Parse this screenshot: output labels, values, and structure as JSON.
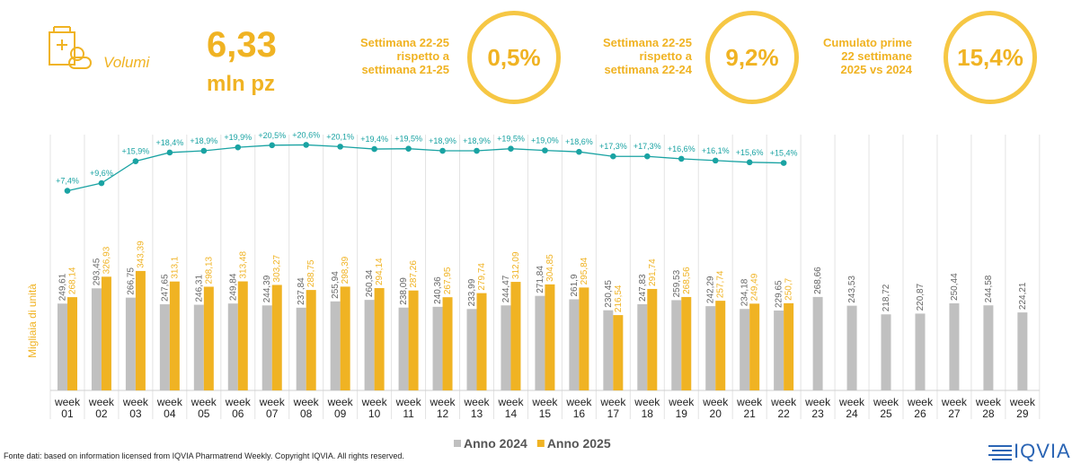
{
  "header": {
    "label": "Volumi",
    "value": "6,33",
    "unit": "mln pz",
    "kpis": [
      {
        "lines": [
          "Settimana 22-25",
          "rispetto a",
          "settimana 21-25"
        ],
        "value": "0,5%"
      },
      {
        "lines": [
          "Settimana 22-25",
          "rispetto a",
          "settimana 22-24"
        ],
        "value": "9,2%"
      },
      {
        "lines": [
          "Cumulato prime",
          "22 settimane",
          "2025 vs 2024"
        ],
        "value": "15,4%"
      }
    ]
  },
  "chart_data": {
    "type": "bar",
    "y_label": "Migliaia di unità",
    "categories": [
      "week 01",
      "week 02",
      "week 03",
      "week 04",
      "week 05",
      "week 06",
      "week 07",
      "week 08",
      "week 09",
      "week 10",
      "week 11",
      "week 12",
      "week 13",
      "week 14",
      "week 15",
      "week 16",
      "week 17",
      "week 18",
      "week 19",
      "week 20",
      "week 21",
      "week 22",
      "week 23",
      "week 24",
      "week 25",
      "week 26",
      "week 27",
      "week 28",
      "week 29"
    ],
    "ylim": [
      0,
      800
    ],
    "y2lim": [
      -50,
      30
    ],
    "series": [
      {
        "name": "Anno 2024",
        "color": "#c0c0c0",
        "values": [
          249.61,
          293.45,
          266.75,
          247.65,
          246.31,
          249.84,
          244.39,
          237.84,
          255.94,
          260.34,
          238.09,
          240.36,
          233.99,
          244.47,
          271.84,
          261.9,
          230.45,
          247.83,
          259.53,
          242.29,
          234.18,
          229.65,
          268.66,
          243.53,
          218.72,
          220.87,
          250.44,
          244.58,
          224.21
        ],
        "value_labels": [
          "249,61",
          "293,45",
          "266,75",
          "247,65",
          "246,31",
          "249,84",
          "244,39",
          "237,84",
          "255,94",
          "260,34",
          "238,09",
          "240,36",
          "233,99",
          "244,47",
          "271,84",
          "261,9",
          "230,45",
          "247,83",
          "259,53",
          "242,29",
          "234,18",
          "229,65",
          "268,66",
          "243,53",
          "218,72",
          "220,87",
          "250,44",
          "244,58",
          "224,21"
        ]
      },
      {
        "name": "Anno 2025",
        "color": "#f0b323",
        "values": [
          268.14,
          326.93,
          343.39,
          313.1,
          298.13,
          313.48,
          303.27,
          288.75,
          298.39,
          294.14,
          287.26,
          267.95,
          279.74,
          312.09,
          304.85,
          295.84,
          216.54,
          291.74,
          268.56,
          257.74,
          249.49,
          250.7,
          null,
          null,
          null,
          null,
          null,
          null,
          null
        ],
        "value_labels": [
          "268,14",
          "326,93",
          "343,39",
          "313,1",
          "298,13",
          "313,48",
          "303,27",
          "288,75",
          "298,39",
          "294,14",
          "287,26",
          "267,95",
          "279,74",
          "312,09",
          "304,85",
          "295,84",
          "216,54",
          "291,74",
          "268,56",
          "257,74",
          "249,49",
          "250,7",
          null,
          null,
          null,
          null,
          null,
          null,
          null
        ]
      },
      {
        "type": "line",
        "axis": "y2",
        "color": "#1aa3a3",
        "values": [
          7.4,
          9.6,
          15.9,
          18.4,
          18.9,
          19.9,
          20.5,
          20.6,
          20.1,
          19.4,
          19.5,
          18.9,
          18.9,
          19.5,
          19.0,
          18.6,
          17.3,
          17.3,
          16.6,
          16.1,
          15.6,
          15.4,
          null,
          null,
          null,
          null,
          null,
          null,
          null
        ],
        "value_labels": [
          "+7,4%",
          "+9,6%",
          "+15,9%",
          "+18,4%",
          "+18,9%",
          "+19,9%",
          "+20,5%",
          "+20,6%",
          "+20,1%",
          "+19,4%",
          "+19,5%",
          "+18,9%",
          "+18,9%",
          "+19,5%",
          "+19,0%",
          "+18,6%",
          "+17,3%",
          "+17,3%",
          "+16,6%",
          "+16,1%",
          "+15,6%",
          "+15,4%",
          null,
          null,
          null,
          null,
          null,
          null,
          null
        ]
      }
    ]
  },
  "footer": {
    "source": "Fonte dati: based on information licensed from IQVIA Pharmatrend Weekly. Copyright IQVIA. All rights reserved.",
    "logo": "IQVIA"
  }
}
